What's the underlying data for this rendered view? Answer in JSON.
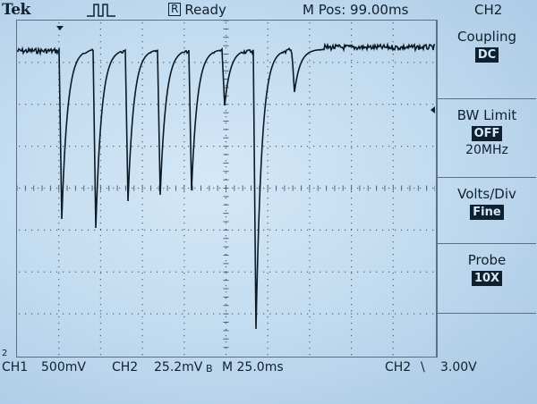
{
  "header": {
    "brand": "Tek",
    "status_box": "R",
    "status": "Ready",
    "mpos": "M Pos: 99.00ms",
    "channel": "CH2"
  },
  "menu": [
    {
      "label": "Coupling",
      "value": "DC",
      "sub": ""
    },
    {
      "label": "BW Limit",
      "value": "OFF",
      "sub": "20MHz"
    },
    {
      "label": "Volts/Div",
      "value": "Fine",
      "sub": ""
    },
    {
      "label": "Probe",
      "value": "10X",
      "sub": ""
    }
  ],
  "footer": {
    "ch1": "CH1",
    "ch1_scale": "500mV",
    "ch2": "CH2",
    "ch2_scale": "25.2mV",
    "bw_mark": "B",
    "time": "M 25.0ms",
    "trig_ch": "CH2",
    "trig_slope": "\\",
    "trig_level": "3.00V"
  },
  "markers": {
    "ground": "2"
  },
  "colors": {
    "trace": "#0c1a26",
    "grid": "#4d6379",
    "background": "#c7def1"
  }
}
